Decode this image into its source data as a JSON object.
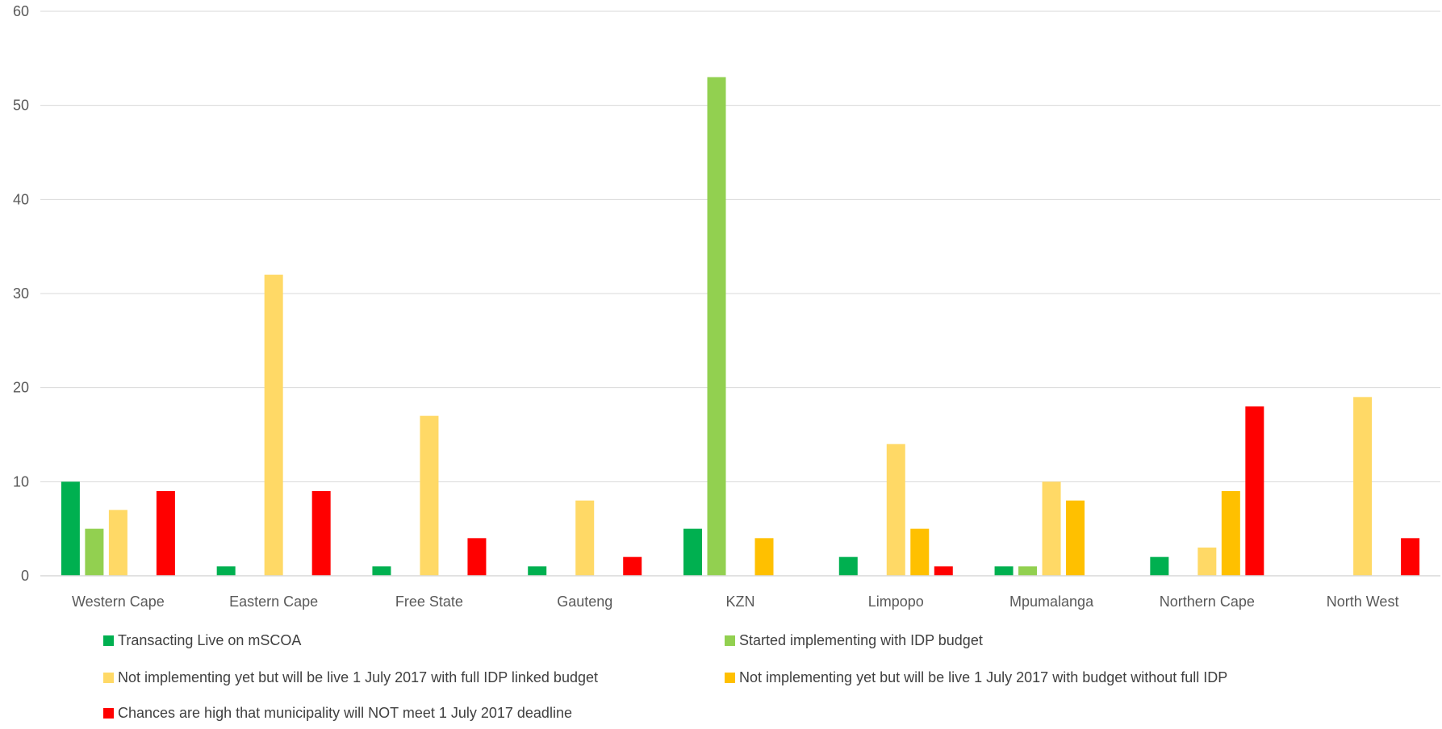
{
  "chart_data": {
    "type": "bar",
    "title": "",
    "xlabel": "",
    "ylabel": "",
    "ylim": [
      0,
      60
    ],
    "yticks": [
      0,
      10,
      20,
      30,
      40,
      50,
      60
    ],
    "grid": true,
    "legend_position": "bottom",
    "categories": [
      "Western Cape",
      "Eastern Cape",
      "Free State",
      "Gauteng",
      "KZN",
      "Limpopo",
      "Mpumalanga",
      "Northern Cape",
      "North West"
    ],
    "series": [
      {
        "name": "Transacting Live on mSCOA",
        "color": "#00b050",
        "values": [
          10,
          1,
          1,
          1,
          5,
          2,
          1,
          2,
          0
        ]
      },
      {
        "name": "Started implementing with IDP budget",
        "color": "#92d050",
        "values": [
          5,
          0,
          0,
          0,
          53,
          0,
          1,
          0,
          0
        ]
      },
      {
        "name": "Not implementing yet but will be live 1 July 2017 with full IDP linked budget",
        "color": "#ffd966",
        "values": [
          7,
          32,
          17,
          8,
          0,
          14,
          10,
          3,
          19
        ]
      },
      {
        "name": "Not implementing yet but will be live 1 July 2017 with budget without full IDP",
        "color": "#ffc000",
        "values": [
          0,
          0,
          0,
          0,
          4,
          5,
          8,
          9,
          0
        ]
      },
      {
        "name": "Chances are high that municipality will NOT meet 1 July 2017 deadline",
        "color": "#ff0000",
        "values": [
          9,
          9,
          4,
          2,
          0,
          1,
          0,
          18,
          4
        ]
      }
    ]
  }
}
